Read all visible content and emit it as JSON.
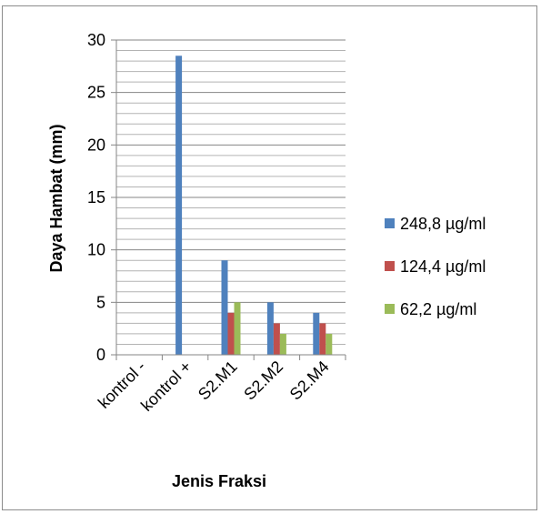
{
  "chart_data": {
    "type": "bar",
    "title": "",
    "xlabel": "Jenis Fraksi",
    "ylabel": "Daya  Hambat (mm)",
    "categories": [
      "kontrol -",
      "kontrol +",
      "S2.M1",
      "S2.M2",
      "S2.M4"
    ],
    "series": [
      {
        "name": "248,8 µg/ml",
        "color": "#4f81bd",
        "values": [
          0,
          28.5,
          9,
          5,
          4
        ]
      },
      {
        "name": "124,4 µg/ml",
        "color": "#c0504d",
        "values": [
          0,
          0,
          4,
          3,
          3
        ]
      },
      {
        "name": "62,2 µg/ml",
        "color": "#9bbb59",
        "values": [
          0,
          0,
          5,
          2,
          2
        ]
      }
    ],
    "ylim": [
      0,
      30
    ],
    "yticks": [
      0,
      5,
      10,
      15,
      20,
      25,
      30
    ],
    "minor_gridlines_every": 1,
    "grid": true,
    "legend": "right"
  }
}
